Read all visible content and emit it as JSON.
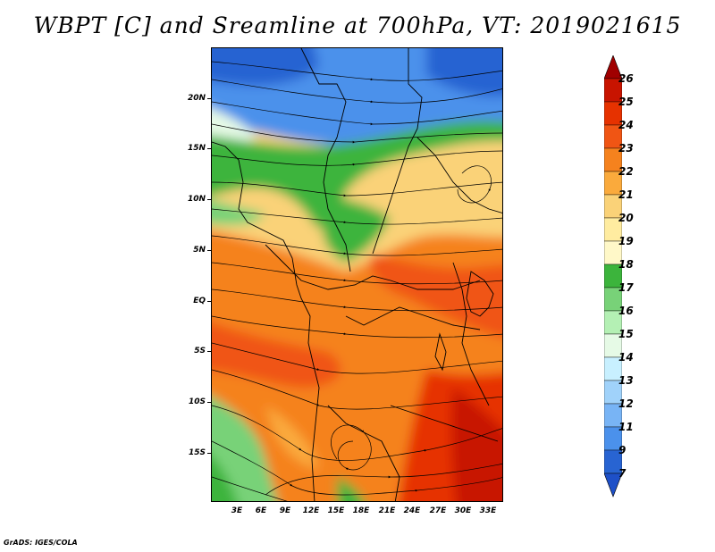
{
  "title": "WBPT [C] and Sreamline at 700hPa, VT: 2019021615",
  "credit": "GrADS: IGES/COLA",
  "map": {
    "lat_labels": [
      "20N",
      "15N",
      "10N",
      "5N",
      "EQ",
      "5S",
      "10S",
      "15S"
    ],
    "lon_labels": [
      "3E",
      "6E",
      "9E",
      "12E",
      "15E",
      "18E",
      "21E",
      "24E",
      "27E",
      "30E",
      "33E"
    ]
  },
  "colorbar": {
    "levels": [
      "26",
      "25",
      "24",
      "23",
      "22",
      "21",
      "20",
      "19",
      "18",
      "17",
      "16",
      "15",
      "14",
      "13",
      "12",
      "11",
      "9",
      "7"
    ],
    "colors": [
      "#a00000",
      "#c81400",
      "#e63200",
      "#f05514",
      "#f5821e",
      "#faaa3c",
      "#fad278",
      "#ffeca0",
      "#fff8c8",
      "#3cb43c",
      "#78d278",
      "#b4f0b4",
      "#e6fae6",
      "#c8f0ff",
      "#a0d2fa",
      "#78b4f5",
      "#4b91eb",
      "#2864d2",
      "#1e50c8"
    ]
  }
}
